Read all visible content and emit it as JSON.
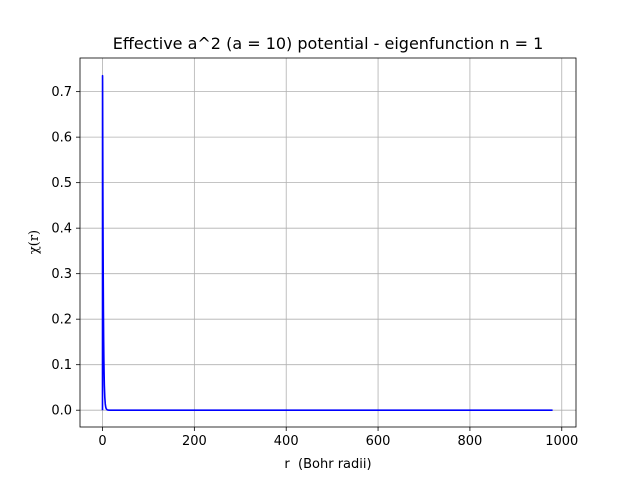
{
  "chart_data": {
    "type": "line",
    "title": "Effective a^2 (a = 10) potential - eigenfunction n = 1",
    "xlabel": "r  (Bohr radii)",
    "ylabel": "χ(r)",
    "xlim": [
      -49,
      1031
    ],
    "ylim": [
      -0.0369,
      0.7739
    ],
    "xticks": [
      0,
      200,
      400,
      600,
      800,
      1000
    ],
    "xtick_labels": [
      "0",
      "200",
      "400",
      "600",
      "800",
      "1000"
    ],
    "yticks": [
      0.0,
      0.1,
      0.2,
      0.3,
      0.4,
      0.5,
      0.6,
      0.7
    ],
    "ytick_labels": [
      "0.0",
      "0.1",
      "0.2",
      "0.3",
      "0.4",
      "0.5",
      "0.6",
      "0.7"
    ],
    "grid": true,
    "line_color": "#0000ff",
    "series": [
      {
        "x": [
          0.0,
          0.02,
          0.05,
          0.1,
          0.15,
          0.2,
          0.3,
          0.5,
          0.8,
          1.2,
          1.6,
          2.0,
          2.5,
          3.0,
          3.5,
          4.0,
          5.0,
          6.0,
          7.0,
          8.0,
          10.0,
          12.0,
          15.0,
          20.0,
          30.0,
          50.0,
          100.0,
          200.0,
          400.0,
          600.0,
          800.0,
          980.0
        ],
        "y": [
          0.0,
          0.4,
          0.68,
          0.735,
          0.73,
          0.72,
          0.68,
          0.6,
          0.49,
          0.38,
          0.29,
          0.22,
          0.155,
          0.11,
          0.08,
          0.055,
          0.028,
          0.014,
          0.007,
          0.0035,
          0.001,
          0.0003,
          0.0,
          0.0,
          0.0,
          0.0,
          0.0,
          0.0,
          0.0,
          0.0,
          0.0,
          0.0
        ]
      }
    ]
  }
}
